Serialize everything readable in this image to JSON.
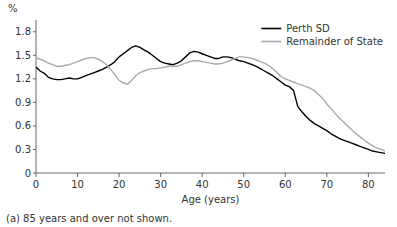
{
  "chart_data": {
    "type": "line",
    "xlabel": "Age (years)",
    "ylabel": "%",
    "footnote": "(a) 85 years and over not shown.",
    "x": [
      0,
      1,
      2,
      3,
      4,
      5,
      6,
      7,
      8,
      9,
      10,
      11,
      12,
      13,
      14,
      15,
      16,
      17,
      18,
      19,
      20,
      21,
      22,
      23,
      24,
      25,
      26,
      27,
      28,
      29,
      30,
      31,
      32,
      33,
      34,
      35,
      36,
      37,
      38,
      39,
      40,
      41,
      42,
      43,
      44,
      45,
      46,
      47,
      48,
      49,
      50,
      51,
      52,
      53,
      54,
      55,
      56,
      57,
      58,
      59,
      60,
      61,
      62,
      63,
      64,
      65,
      66,
      67,
      68,
      69,
      70,
      71,
      72,
      73,
      74,
      75,
      76,
      77,
      78,
      79,
      80,
      81,
      82,
      83,
      84
    ],
    "series": [
      {
        "name": "Perth SD",
        "color": "#000000",
        "values": [
          1.35,
          1.3,
          1.27,
          1.22,
          1.2,
          1.19,
          1.19,
          1.2,
          1.21,
          1.2,
          1.2,
          1.22,
          1.24,
          1.26,
          1.28,
          1.3,
          1.32,
          1.35,
          1.38,
          1.42,
          1.48,
          1.52,
          1.56,
          1.6,
          1.62,
          1.6,
          1.57,
          1.54,
          1.5,
          1.46,
          1.42,
          1.4,
          1.39,
          1.38,
          1.4,
          1.43,
          1.48,
          1.53,
          1.55,
          1.54,
          1.52,
          1.5,
          1.48,
          1.46,
          1.46,
          1.48,
          1.48,
          1.47,
          1.45,
          1.43,
          1.42,
          1.4,
          1.38,
          1.36,
          1.33,
          1.3,
          1.27,
          1.24,
          1.2,
          1.16,
          1.12,
          1.1,
          1.05,
          0.85,
          0.78,
          0.72,
          0.67,
          0.63,
          0.6,
          0.57,
          0.54,
          0.5,
          0.47,
          0.44,
          0.42,
          0.4,
          0.38,
          0.36,
          0.34,
          0.32,
          0.3,
          0.28,
          0.27,
          0.26,
          0.25
        ]
      },
      {
        "name": "Remainder of State",
        "color": "#aaaaaa",
        "values": [
          1.47,
          1.45,
          1.43,
          1.4,
          1.38,
          1.36,
          1.36,
          1.37,
          1.38,
          1.4,
          1.42,
          1.44,
          1.46,
          1.47,
          1.47,
          1.45,
          1.42,
          1.38,
          1.32,
          1.25,
          1.18,
          1.15,
          1.13,
          1.18,
          1.24,
          1.28,
          1.3,
          1.32,
          1.33,
          1.33,
          1.34,
          1.35,
          1.36,
          1.36,
          1.36,
          1.38,
          1.4,
          1.42,
          1.43,
          1.43,
          1.42,
          1.41,
          1.4,
          1.39,
          1.39,
          1.4,
          1.42,
          1.44,
          1.46,
          1.48,
          1.48,
          1.47,
          1.46,
          1.44,
          1.42,
          1.4,
          1.37,
          1.33,
          1.28,
          1.23,
          1.2,
          1.18,
          1.16,
          1.14,
          1.12,
          1.1,
          1.08,
          1.05,
          1.0,
          0.95,
          0.88,
          0.82,
          0.76,
          0.7,
          0.65,
          0.6,
          0.55,
          0.5,
          0.46,
          0.42,
          0.38,
          0.35,
          0.32,
          0.3,
          0.28
        ]
      }
    ],
    "xlim": [
      0,
      84
    ],
    "ylim": [
      0,
      1.95
    ],
    "xticks": [
      0,
      10,
      20,
      30,
      40,
      50,
      60,
      70,
      80
    ],
    "yticks": [
      0,
      0.3,
      0.6,
      0.9,
      1.2,
      1.5,
      1.8
    ],
    "grid": false,
    "legend": "upper right"
  }
}
